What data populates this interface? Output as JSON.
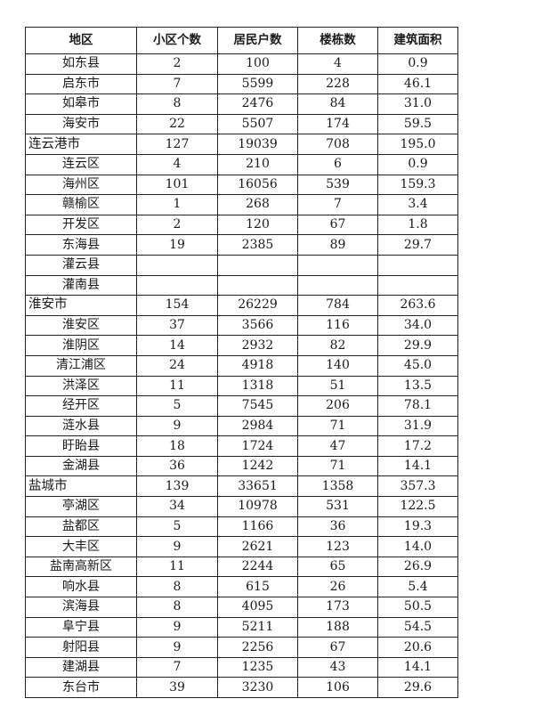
{
  "table": {
    "headers": [
      "地区",
      "小区个数",
      "居民户数",
      "楼栋数",
      "建筑面积"
    ],
    "rows": [
      {
        "region": "如东县",
        "type": "sub",
        "values": [
          "2",
          "100",
          "4",
          "0.9"
        ]
      },
      {
        "region": "启东市",
        "type": "sub",
        "values": [
          "7",
          "5599",
          "228",
          "46.1"
        ]
      },
      {
        "region": "如皋市",
        "type": "sub",
        "values": [
          "8",
          "2476",
          "84",
          "31.0"
        ]
      },
      {
        "region": "海安市",
        "type": "sub",
        "values": [
          "22",
          "5507",
          "174",
          "59.5"
        ]
      },
      {
        "region": "连云港市",
        "type": "city",
        "values": [
          "127",
          "19039",
          "708",
          "195.0"
        ]
      },
      {
        "region": "连云区",
        "type": "sub",
        "values": [
          "4",
          "210",
          "6",
          "0.9"
        ]
      },
      {
        "region": "海州区",
        "type": "sub",
        "values": [
          "101",
          "16056",
          "539",
          "159.3"
        ]
      },
      {
        "region": "赣榆区",
        "type": "sub",
        "values": [
          "1",
          "268",
          "7",
          "3.4"
        ]
      },
      {
        "region": "开发区",
        "type": "sub",
        "values": [
          "2",
          "120",
          "67",
          "1.8"
        ]
      },
      {
        "region": "东海县",
        "type": "sub",
        "values": [
          "19",
          "2385",
          "89",
          "29.7"
        ]
      },
      {
        "region": "灌云县",
        "type": "sub",
        "values": [
          "",
          "",
          "",
          ""
        ]
      },
      {
        "region": "灌南县",
        "type": "sub",
        "values": [
          "",
          "",
          "",
          ""
        ]
      },
      {
        "region": "淮安市",
        "type": "city",
        "values": [
          "154",
          "26229",
          "784",
          "263.6"
        ]
      },
      {
        "region": "淮安区",
        "type": "sub",
        "values": [
          "37",
          "3566",
          "116",
          "34.0"
        ]
      },
      {
        "region": "淮阴区",
        "type": "sub",
        "values": [
          "14",
          "2932",
          "82",
          "29.9"
        ]
      },
      {
        "region": "清江浦区",
        "type": "sub",
        "values": [
          "24",
          "4918",
          "140",
          "45.0"
        ]
      },
      {
        "region": "洪泽区",
        "type": "sub",
        "values": [
          "11",
          "1318",
          "51",
          "13.5"
        ]
      },
      {
        "region": "经开区",
        "type": "sub",
        "values": [
          "5",
          "7545",
          "206",
          "78.1"
        ]
      },
      {
        "region": "涟水县",
        "type": "sub",
        "values": [
          "9",
          "2984",
          "71",
          "31.9"
        ]
      },
      {
        "region": "盱眙县",
        "type": "sub",
        "values": [
          "18",
          "1724",
          "47",
          "17.2"
        ]
      },
      {
        "region": "金湖县",
        "type": "sub",
        "values": [
          "36",
          "1242",
          "71",
          "14.1"
        ]
      },
      {
        "region": "盐城市",
        "type": "city",
        "values": [
          "139",
          "33651",
          "1358",
          "357.3"
        ]
      },
      {
        "region": "亭湖区",
        "type": "sub",
        "values": [
          "34",
          "10978",
          "531",
          "122.5"
        ]
      },
      {
        "region": "盐都区",
        "type": "sub",
        "values": [
          "5",
          "1166",
          "36",
          "19.3"
        ]
      },
      {
        "region": "大丰区",
        "type": "sub",
        "values": [
          "9",
          "2621",
          "123",
          "14.0"
        ]
      },
      {
        "region": "盐南高新区",
        "type": "sub",
        "values": [
          "11",
          "2244",
          "65",
          "26.9"
        ]
      },
      {
        "region": "响水县",
        "type": "sub",
        "values": [
          "8",
          "615",
          "26",
          "5.4"
        ]
      },
      {
        "region": "滨海县",
        "type": "sub",
        "values": [
          "8",
          "4095",
          "173",
          "50.5"
        ]
      },
      {
        "region": "阜宁县",
        "type": "sub",
        "values": [
          "9",
          "5211",
          "188",
          "54.5"
        ]
      },
      {
        "region": "射阳县",
        "type": "sub",
        "values": [
          "9",
          "2256",
          "67",
          "20.6"
        ]
      },
      {
        "region": "建湖县",
        "type": "sub",
        "values": [
          "7",
          "1235",
          "43",
          "14.1"
        ]
      },
      {
        "region": "东台市",
        "type": "sub",
        "values": [
          "39",
          "3230",
          "106",
          "29.6"
        ]
      }
    ]
  }
}
